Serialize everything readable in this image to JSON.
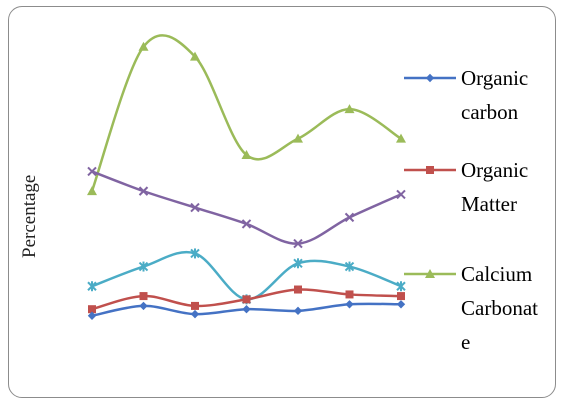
{
  "chart_data": {
    "type": "line",
    "title": "",
    "xlabel": "",
    "ylabel": "Percentage",
    "ylim": [
      0,
      100
    ],
    "x": [
      1,
      2,
      3,
      4,
      5,
      6,
      7
    ],
    "series": [
      {
        "name": "Organic carbon",
        "color": "#4472c4",
        "marker": "diamond",
        "values": [
          8,
          11,
          8.5,
          10,
          9.5,
          11.5,
          11.5
        ]
      },
      {
        "name": "Organic Matter",
        "color": "#c0504d",
        "marker": "square",
        "values": [
          10,
          14,
          11,
          13,
          16,
          14.5,
          14
        ]
      },
      {
        "name": "Calcium Carbonate",
        "color": "#9bbb59",
        "marker": "triangle",
        "values": [
          46,
          90,
          87,
          57,
          62,
          71,
          62
        ]
      },
      {
        "name": "",
        "color": "#8064a2",
        "marker": "x",
        "values": [
          52,
          46,
          41,
          36,
          30,
          38,
          45
        ]
      },
      {
        "name": "",
        "color": "#4bacc6",
        "marker": "asterisk",
        "values": [
          17,
          23,
          27,
          13,
          24,
          23,
          17
        ]
      }
    ],
    "legend": {
      "position": "right",
      "entries": [
        {
          "lines": [
            "Organic",
            "carbon"
          ]
        },
        {
          "lines": [
            "Organic",
            "Matter"
          ]
        },
        {
          "lines": [
            "Calcium",
            "Carbonat",
            "e"
          ]
        }
      ]
    },
    "grid": false
  }
}
